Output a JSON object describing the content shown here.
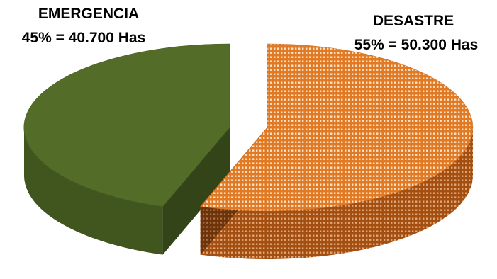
{
  "chart_data": {
    "type": "pie",
    "style": "3d-exploded",
    "slices": [
      {
        "name": "EMERGENCIA",
        "value": 40700,
        "percent": 45,
        "value_label": "45% = 40.700 Has",
        "color": "#536d28",
        "pattern": "solid"
      },
      {
        "name": "DESASTRE",
        "value": 50300,
        "percent": 55,
        "value_label": "55% = 50.300 Has",
        "color": "#e07a24",
        "pattern": "dotted"
      }
    ]
  }
}
